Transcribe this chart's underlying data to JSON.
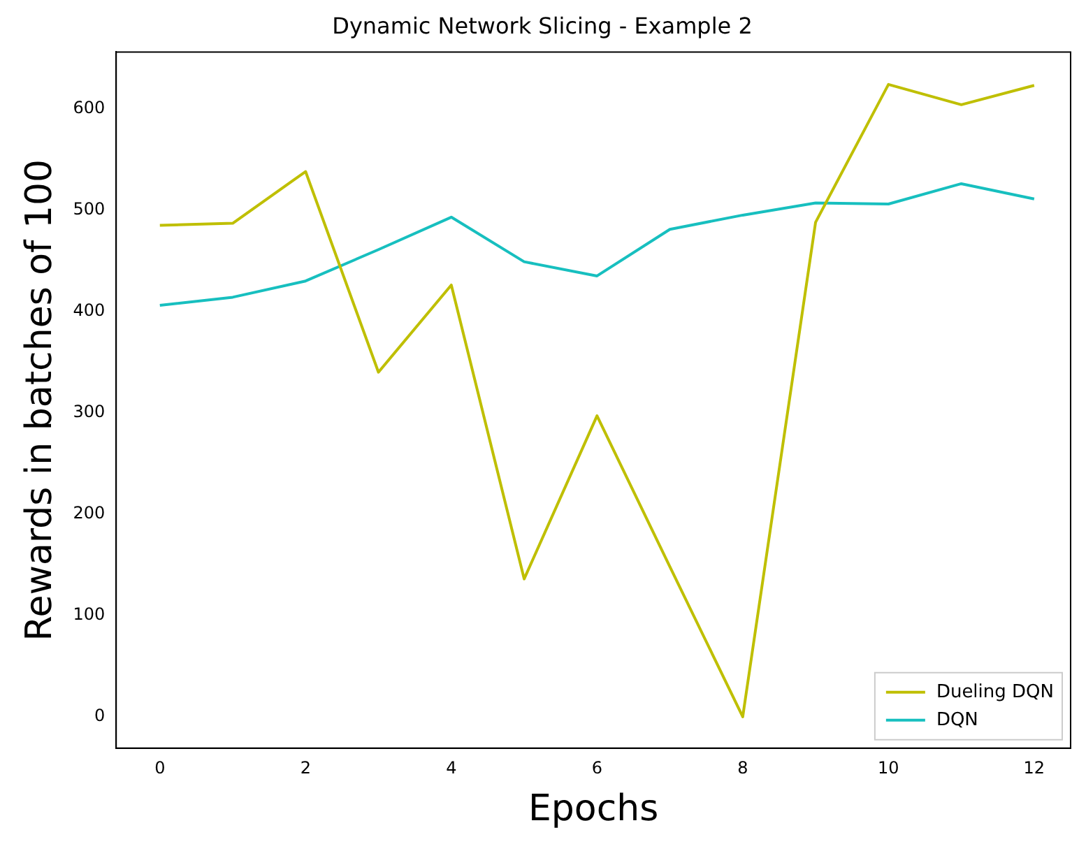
{
  "chart_data": {
    "type": "line",
    "title": "Dynamic Network Slicing - Example 2",
    "xlabel": "Epochs",
    "ylabel": "Rewards in batches of 100",
    "x": [
      0,
      1,
      2,
      3,
      4,
      5,
      6,
      7,
      8,
      9,
      10,
      11,
      12
    ],
    "series": [
      {
        "name": "Dueling DQN",
        "color": "#bfbf00",
        "values": [
          485,
          487,
          538,
          340,
          426,
          136,
          297,
          148,
          0,
          488,
          624,
          604,
          623
        ]
      },
      {
        "name": "DQN",
        "color": "#17bfbf",
        "values": [
          406,
          414,
          430,
          461,
          493,
          449,
          435,
          481,
          495,
          507,
          506,
          526,
          511
        ]
      }
    ],
    "xlim": [
      -0.6,
      12.5
    ],
    "xticks": [
      0,
      2,
      4,
      6,
      8,
      10,
      12
    ],
    "ylim": [
      -31,
      656
    ],
    "yticks": [
      0,
      100,
      200,
      300,
      400,
      500,
      600
    ],
    "grid": false,
    "legend": "bottom right",
    "marker": "none",
    "line_style": "solid"
  }
}
